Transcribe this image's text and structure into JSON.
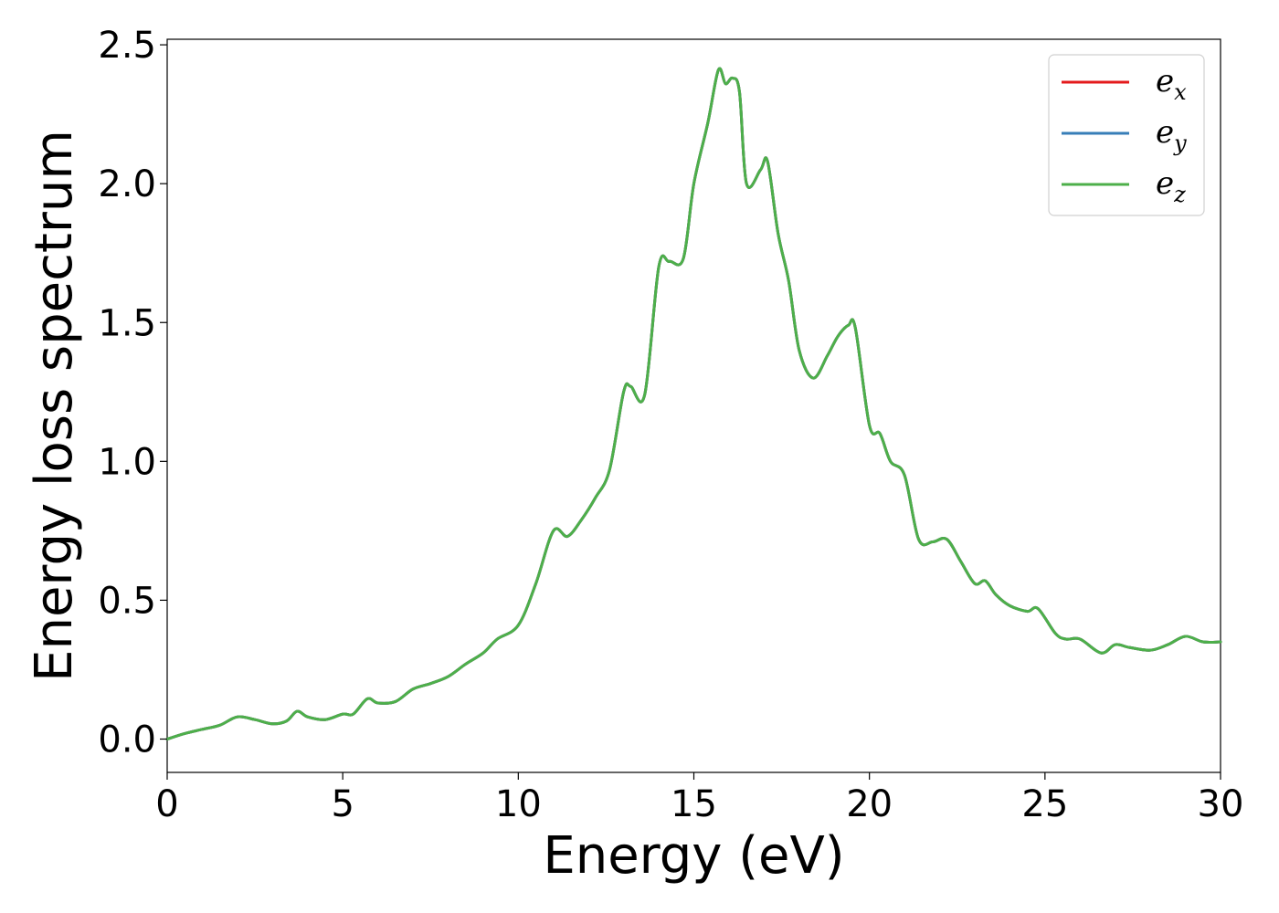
{
  "chart_data": {
    "type": "line",
    "title": "",
    "xlabel": "Energy (eV)",
    "ylabel": "Energy loss spectrum",
    "xlim": [
      0,
      30
    ],
    "ylim": [
      -0.12,
      2.52
    ],
    "xticks": [
      "0",
      "5",
      "10",
      "15",
      "20",
      "25",
      "30"
    ],
    "yticks": [
      "0.0",
      "0.5",
      "1.0",
      "1.5",
      "2.0",
      "2.5"
    ],
    "grid": false,
    "legend_position": "top-right",
    "x": [
      0,
      0.5,
      1.0,
      1.5,
      2.0,
      2.5,
      3.0,
      3.4,
      3.7,
      4.0,
      4.5,
      5.0,
      5.3,
      5.7,
      6.0,
      6.5,
      7.0,
      7.5,
      8.0,
      8.5,
      9.0,
      9.4,
      10.0,
      10.5,
      11.0,
      11.4,
      11.8,
      12.2,
      12.6,
      13.0,
      13.2,
      13.6,
      14.0,
      14.3,
      14.7,
      15.0,
      15.4,
      15.7,
      15.9,
      16.1,
      16.3,
      16.5,
      16.9,
      17.1,
      17.4,
      17.7,
      18.0,
      18.4,
      18.8,
      19.1,
      19.4,
      19.6,
      20.0,
      20.3,
      20.6,
      21.0,
      21.4,
      21.8,
      22.2,
      22.6,
      23.0,
      23.3,
      23.6,
      24.0,
      24.5,
      24.8,
      25.3,
      25.6,
      26.0,
      26.6,
      27.0,
      27.4,
      28.0,
      28.5,
      29.0,
      29.5,
      30.0
    ],
    "series": [
      {
        "name": "e_x",
        "color": "#e41a1c",
        "values": [
          0.0,
          0.02,
          0.035,
          0.05,
          0.08,
          0.07,
          0.055,
          0.065,
          0.1,
          0.08,
          0.07,
          0.09,
          0.09,
          0.145,
          0.13,
          0.135,
          0.18,
          0.2,
          0.225,
          0.27,
          0.31,
          0.36,
          0.41,
          0.56,
          0.75,
          0.73,
          0.79,
          0.87,
          0.97,
          1.25,
          1.27,
          1.24,
          1.7,
          1.72,
          1.73,
          2.0,
          2.22,
          2.41,
          2.36,
          2.38,
          2.33,
          2.0,
          2.05,
          2.08,
          1.82,
          1.65,
          1.4,
          1.3,
          1.38,
          1.45,
          1.49,
          1.48,
          1.13,
          1.1,
          1.0,
          0.95,
          0.72,
          0.71,
          0.72,
          0.64,
          0.56,
          0.57,
          0.52,
          0.48,
          0.46,
          0.47,
          0.38,
          0.36,
          0.36,
          0.31,
          0.34,
          0.33,
          0.32,
          0.34,
          0.37,
          0.35,
          0.35
        ]
      },
      {
        "name": "e_y",
        "color": "#377eb8",
        "values": [
          0.0,
          0.02,
          0.035,
          0.05,
          0.08,
          0.07,
          0.055,
          0.065,
          0.1,
          0.08,
          0.07,
          0.09,
          0.09,
          0.145,
          0.13,
          0.135,
          0.18,
          0.2,
          0.225,
          0.27,
          0.31,
          0.36,
          0.41,
          0.56,
          0.75,
          0.73,
          0.79,
          0.87,
          0.97,
          1.25,
          1.27,
          1.24,
          1.7,
          1.72,
          1.73,
          2.0,
          2.22,
          2.41,
          2.36,
          2.38,
          2.33,
          2.0,
          2.05,
          2.08,
          1.82,
          1.65,
          1.4,
          1.3,
          1.38,
          1.45,
          1.49,
          1.48,
          1.13,
          1.1,
          1.0,
          0.95,
          0.72,
          0.71,
          0.72,
          0.64,
          0.56,
          0.57,
          0.52,
          0.48,
          0.46,
          0.47,
          0.38,
          0.36,
          0.36,
          0.31,
          0.34,
          0.33,
          0.32,
          0.34,
          0.37,
          0.35,
          0.35
        ]
      },
      {
        "name": "e_z",
        "color": "#4daf4a",
        "values": [
          0.0,
          0.02,
          0.035,
          0.05,
          0.08,
          0.07,
          0.055,
          0.065,
          0.1,
          0.08,
          0.07,
          0.09,
          0.09,
          0.145,
          0.13,
          0.135,
          0.18,
          0.2,
          0.225,
          0.27,
          0.31,
          0.36,
          0.41,
          0.56,
          0.75,
          0.73,
          0.79,
          0.87,
          0.97,
          1.25,
          1.27,
          1.24,
          1.7,
          1.72,
          1.73,
          2.0,
          2.22,
          2.41,
          2.36,
          2.38,
          2.33,
          2.0,
          2.05,
          2.08,
          1.82,
          1.65,
          1.4,
          1.3,
          1.38,
          1.45,
          1.49,
          1.48,
          1.13,
          1.1,
          1.0,
          0.95,
          0.72,
          0.71,
          0.72,
          0.64,
          0.56,
          0.57,
          0.52,
          0.48,
          0.46,
          0.47,
          0.38,
          0.36,
          0.36,
          0.31,
          0.34,
          0.33,
          0.32,
          0.34,
          0.37,
          0.35,
          0.35
        ]
      }
    ],
    "legend": [
      {
        "base": "e",
        "sub": "x",
        "color": "#e41a1c"
      },
      {
        "base": "e",
        "sub": "y",
        "color": "#377eb8"
      },
      {
        "base": "e",
        "sub": "z",
        "color": "#4daf4a"
      }
    ]
  }
}
